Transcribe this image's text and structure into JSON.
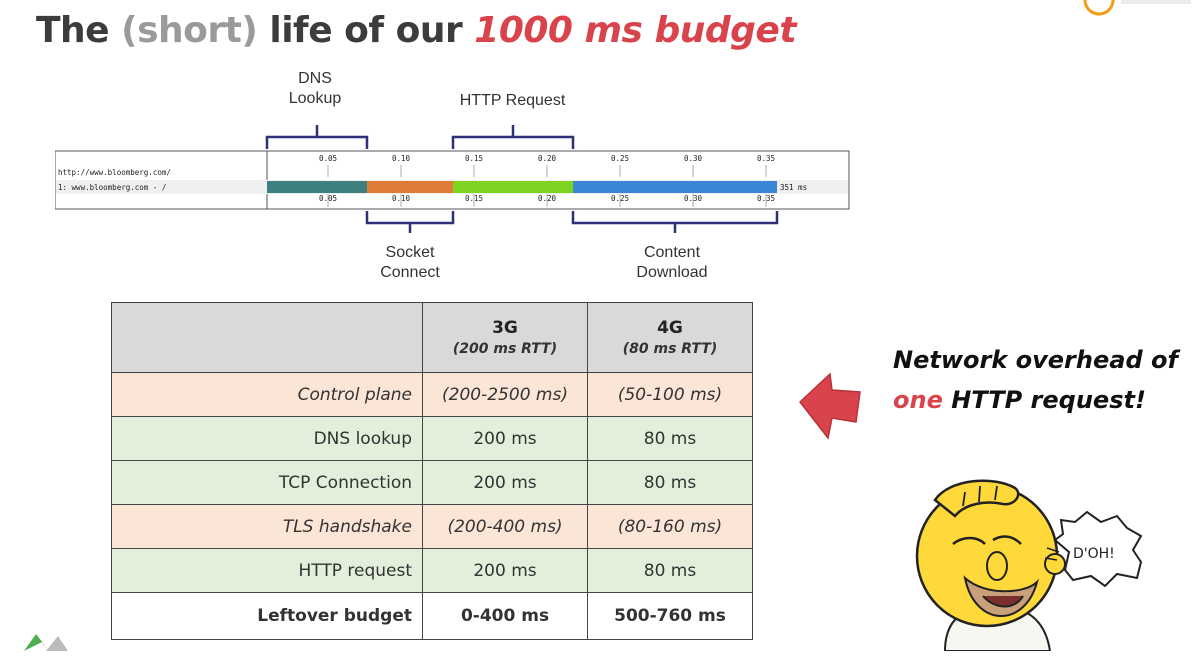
{
  "title": {
    "part1": "The",
    "part2": "(short)",
    "part3": "life of our",
    "part4": "1000 ms budget"
  },
  "waterfall": {
    "url_header": "http://www.bloomberg.com/",
    "row_label": "1: www.bloomberg.com - /",
    "ticks": [
      "0.05",
      "0.10",
      "0.15",
      "0.20",
      "0.25",
      "0.30",
      "0.35"
    ],
    "total": "351 ms",
    "labels": {
      "dns": [
        "DNS",
        "Lookup"
      ],
      "http": "HTTP Request",
      "socket": [
        "Socket",
        "Connect"
      ],
      "content": [
        "Content",
        "Download"
      ]
    }
  },
  "table": {
    "columns": [
      {
        "name": "3G",
        "sub": "(200 ms RTT)"
      },
      {
        "name": "4G",
        "sub": "(80 ms RTT)"
      }
    ],
    "rows": [
      {
        "label": "Control plane",
        "v3g": "(200-2500 ms)",
        "v4g": "(50-100 ms)"
      },
      {
        "label": "DNS lookup",
        "v3g": "200 ms",
        "v4g": "80 ms"
      },
      {
        "label": "TCP Connection",
        "v3g": "200 ms",
        "v4g": "80 ms"
      },
      {
        "label": "TLS handshake",
        "v3g": "(200-400 ms)",
        "v4g": "(80-160 ms)"
      },
      {
        "label": "HTTP request",
        "v3g": "200 ms",
        "v4g": "80 ms"
      },
      {
        "label": "Leftover budget",
        "v3g": "0-400 ms",
        "v4g": "500-760 ms"
      }
    ]
  },
  "callout": {
    "line1": "Network overhead of",
    "emph": "one",
    "line2_rest": " HTTP request!"
  },
  "bubble_text": "D'OH!",
  "colors": {
    "accent_red": "#d9434c",
    "dns_bar": "#3e7f80",
    "socket_bar": "#e07b39",
    "http_bar": "#7ed321",
    "content_bar": "#3b86d6",
    "bracket": "#2f2f7a",
    "peach": "#fbe5d6",
    "green": "#e2efda",
    "header_gray": "#d9d9d9"
  }
}
